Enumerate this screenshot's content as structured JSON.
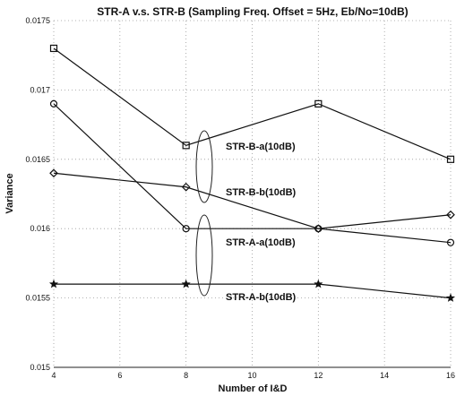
{
  "chart_data": {
    "type": "line",
    "title": "STR-A v.s. STR-B (Sampling Freq. Offset = 5Hz, Eb/No=10dB)",
    "xlabel": "Number of I&D",
    "ylabel": "Variance",
    "xlim": [
      4,
      16
    ],
    "ylim": [
      0.015,
      0.0175
    ],
    "xticks": [
      4,
      6,
      8,
      10,
      12,
      14,
      16
    ],
    "xtick_labels": [
      "4",
      "6",
      "8",
      "10",
      "12",
      "14",
      "16"
    ],
    "yticks": [
      0.015,
      0.0155,
      0.016,
      0.0165,
      0.017,
      0.0175
    ],
    "ytick_labels": [
      "0.015",
      "0.0155",
      "0.016",
      "0.0165",
      "0.017",
      "0.0175"
    ],
    "grid": true,
    "x": [
      4,
      8,
      12,
      16
    ],
    "series": [
      {
        "name": "STR-B-a(10dB)",
        "marker": "square",
        "values": [
          0.0173,
          0.0166,
          0.0169,
          0.0165
        ]
      },
      {
        "name": "STR-B-b(10dB)",
        "marker": "diamond",
        "values": [
          0.0164,
          0.0163,
          0.016,
          0.0161
        ]
      },
      {
        "name": "STR-A-a(10dB)",
        "marker": "circle",
        "values": [
          0.0169,
          0.016,
          0.016,
          0.0159
        ]
      },
      {
        "name": "STR-A-b(10dB)",
        "marker": "star",
        "values": [
          0.0156,
          0.0156,
          0.0156,
          0.0155
        ]
      }
    ]
  }
}
